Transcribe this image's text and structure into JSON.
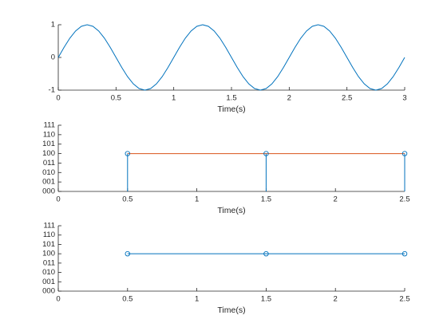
{
  "chart_data": [
    {
      "type": "line",
      "xlabel": "Time(s)",
      "x": [
        0,
        0.05,
        0.1,
        0.15,
        0.2,
        0.25,
        0.3,
        0.35,
        0.4,
        0.45,
        0.5,
        0.55,
        0.6,
        0.65,
        0.7,
        0.75,
        0.8,
        0.85,
        0.9,
        0.95,
        1,
        1.05,
        1.1,
        1.15,
        1.2,
        1.25,
        1.3,
        1.35,
        1.4,
        1.45,
        1.5,
        1.55,
        1.6,
        1.65,
        1.7,
        1.75,
        1.8,
        1.85,
        1.9,
        1.95,
        2,
        2.05,
        2.1,
        2.15,
        2.2,
        2.25,
        2.3,
        2.35,
        2.4,
        2.45,
        2.5,
        2.55,
        2.6,
        2.65,
        2.7,
        2.75,
        2.8,
        2.85,
        2.9,
        2.95,
        3
      ],
      "series": [
        {
          "color": "#0072bd",
          "values": [
            0,
            0.309,
            0.588,
            0.809,
            0.951,
            1,
            0.951,
            0.809,
            0.588,
            0.309,
            0,
            -0.309,
            -0.588,
            -0.809,
            -0.951,
            -1,
            -0.951,
            -0.809,
            -0.588,
            -0.309,
            0,
            0.309,
            0.588,
            0.809,
            0.951,
            1,
            0.951,
            0.809,
            0.588,
            0.309,
            0,
            -0.309,
            -0.588,
            -0.809,
            -0.951,
            -1,
            -0.951,
            -0.809,
            -0.588,
            -0.309,
            0,
            0.309,
            0.588,
            0.809,
            0.951,
            1,
            0.951,
            0.809,
            0.588,
            0.309,
            0,
            -0.309,
            -0.588,
            -0.809,
            -0.951,
            -1,
            -0.951,
            -0.809,
            -0.588,
            -0.309,
            0
          ]
        }
      ],
      "xlim": [
        0,
        3
      ],
      "xticks": [
        0,
        0.5,
        1,
        1.5,
        2,
        2.5,
        3
      ],
      "ylim": [
        -1,
        1
      ],
      "yticks": [
        -1,
        0,
        1
      ]
    },
    {
      "type": "stem",
      "xlabel": "Time(s)",
      "x": [
        0.5,
        1.5,
        2.5
      ],
      "series": [
        {
          "color": "#d95319",
          "values": [
            4,
            4,
            4
          ],
          "style": "line"
        },
        {
          "color": "#0072bd",
          "values": [
            4,
            4,
            4
          ],
          "style": "stem",
          "marker": "o"
        }
      ],
      "xlim": [
        0,
        2.5
      ],
      "xticks": [
        0,
        0.5,
        1,
        1.5,
        2,
        2.5
      ],
      "ylim": [
        0,
        7
      ],
      "yticks": [
        {
          "value": 0,
          "label": "000"
        },
        {
          "value": 1,
          "label": "001"
        },
        {
          "value": 2,
          "label": "010"
        },
        {
          "value": 3,
          "label": "011"
        },
        {
          "value": 4,
          "label": "100"
        },
        {
          "value": 5,
          "label": "101"
        },
        {
          "value": 6,
          "label": "110"
        },
        {
          "value": 7,
          "label": "111"
        }
      ]
    },
    {
      "type": "line",
      "xlabel": "Time(s)",
      "x": [
        0.5,
        1.5,
        2.5
      ],
      "series": [
        {
          "color": "#0072bd",
          "values": [
            4,
            4,
            4
          ],
          "marker": "o"
        }
      ],
      "xlim": [
        0,
        2.5
      ],
      "xticks": [
        0,
        0.5,
        1,
        1.5,
        2,
        2.5
      ],
      "ylim": [
        0,
        7
      ],
      "yticks": [
        {
          "value": 0,
          "label": "000"
        },
        {
          "value": 1,
          "label": "001"
        },
        {
          "value": 2,
          "label": "010"
        },
        {
          "value": 3,
          "label": "011"
        },
        {
          "value": 4,
          "label": "100"
        },
        {
          "value": 5,
          "label": "101"
        },
        {
          "value": 6,
          "label": "110"
        },
        {
          "value": 7,
          "label": "111"
        }
      ]
    }
  ]
}
